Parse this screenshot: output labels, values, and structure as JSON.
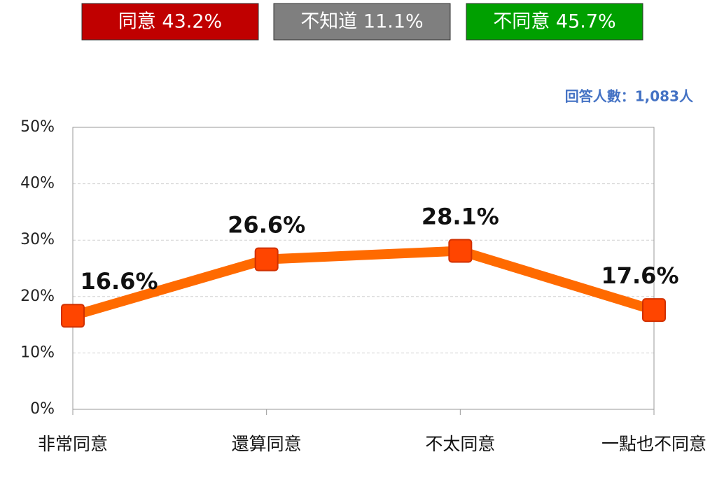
{
  "header": {
    "boxes": [
      {
        "label": "同意 43.2%",
        "color": "#c00000"
      },
      {
        "label": "不知道 11.1%",
        "color": "#7f7f7f"
      },
      {
        "label": "不同意 45.7%",
        "color": "#00a000"
      }
    ]
  },
  "chart_data": {
    "type": "line",
    "annotation": "回答人數：1,083人",
    "categories": [
      "非常同意",
      "還算同意",
      "不太同意",
      "一點也不同意"
    ],
    "values": [
      16.6,
      26.6,
      28.1,
      17.6
    ],
    "value_labels": [
      "16.6%",
      "26.6%",
      "28.1%",
      "17.6%"
    ],
    "color": "#ff6a00",
    "marker_color": "#ff4500",
    "ylim": [
      0,
      50
    ],
    "yticks": [
      {
        "value": 0,
        "label": "0%"
      },
      {
        "value": 10,
        "label": "10%"
      },
      {
        "value": 20,
        "label": "20%"
      },
      {
        "value": 30,
        "label": "30%"
      },
      {
        "value": 40,
        "label": "40%"
      },
      {
        "value": 50,
        "label": "50%"
      }
    ],
    "grid": true
  }
}
